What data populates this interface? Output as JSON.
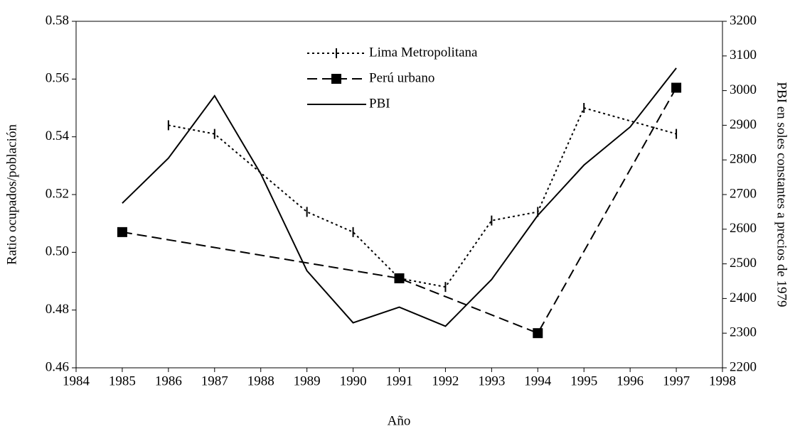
{
  "chart_data": {
    "type": "line",
    "xlabel": "Año",
    "ylabel": "Ratio ocupados/población",
    "y2label": "PBI en soles constantes a precios de 1979",
    "xlim": [
      1984,
      1998
    ],
    "xticks": [
      1984,
      1985,
      1986,
      1987,
      1988,
      1989,
      1990,
      1991,
      1992,
      1993,
      1994,
      1995,
      1996,
      1997,
      1998
    ],
    "ylim": [
      0.46,
      0.58
    ],
    "yticks": [
      {
        "value": 0.46,
        "label": "0.46"
      },
      {
        "value": 0.48,
        "label": "0.48"
      },
      {
        "value": 0.5,
        "label": "0.50"
      },
      {
        "value": 0.52,
        "label": "0.52"
      },
      {
        "value": 0.54,
        "label": "0.54"
      },
      {
        "value": 0.56,
        "label": "0.56"
      },
      {
        "value": 0.58,
        "label": "0.58"
      }
    ],
    "y2lim": [
      2200,
      3200
    ],
    "y2ticks": [
      2200,
      2300,
      2400,
      2500,
      2600,
      2700,
      2800,
      2900,
      3000,
      3100,
      3200
    ],
    "grid": false,
    "legend": "top-center",
    "series": [
      {
        "name": "Lima Metropolitana",
        "color": "#000000",
        "dash": "dotted",
        "marker": "tick",
        "x": [
          1986,
          1987,
          1989,
          1990,
          1991,
          1992,
          1993,
          1994,
          1995,
          1997
        ],
        "values": [
          0.544,
          0.541,
          0.514,
          0.507,
          0.491,
          0.488,
          0.511,
          0.514,
          0.55,
          0.541
        ]
      },
      {
        "name": "Perú urbano",
        "color": "#000000",
        "dash": "dashed",
        "marker": "square",
        "x": [
          1985,
          1991,
          1994,
          1997
        ],
        "values": [
          0.507,
          0.491,
          0.472,
          0.557
        ]
      },
      {
        "name": "PBI",
        "color": "#000000",
        "dash": "solid",
        "marker": "none",
        "axis": "y2",
        "x": [
          1985,
          1986,
          1987,
          1988,
          1989,
          1990,
          1991,
          1992,
          1993,
          1994,
          1995,
          1996,
          1997
        ],
        "values": [
          2675,
          2805,
          2985,
          2760,
          2480,
          2330,
          2375,
          2320,
          2455,
          2640,
          2785,
          2895,
          3065
        ]
      }
    ]
  }
}
